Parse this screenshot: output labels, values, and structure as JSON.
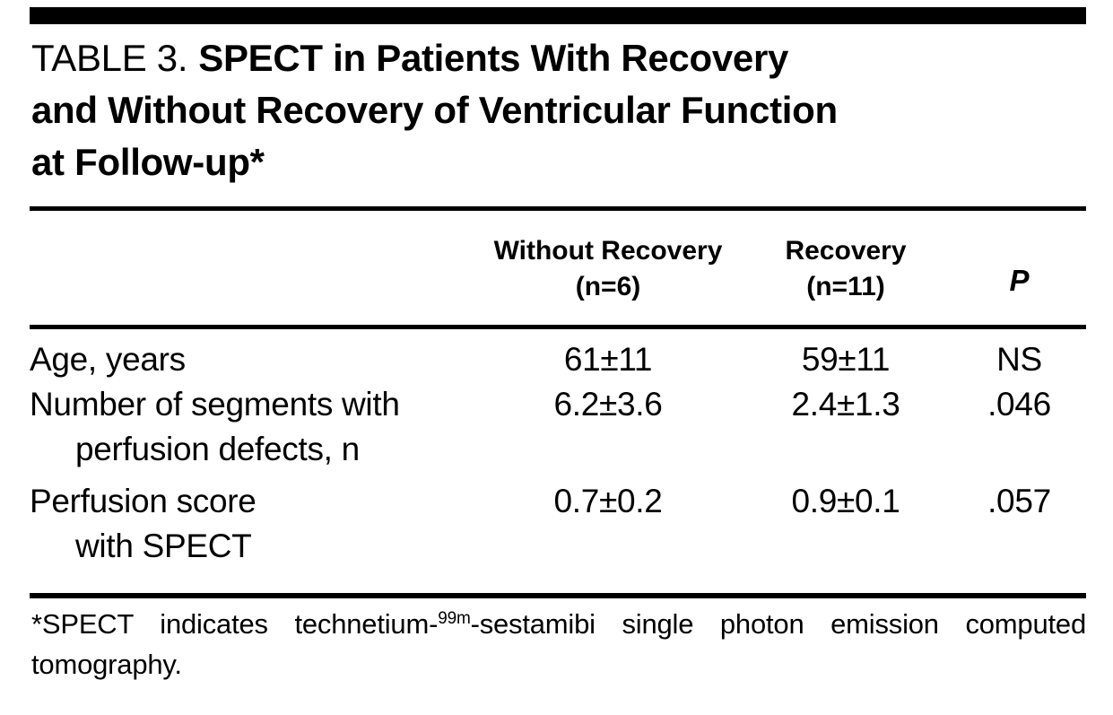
{
  "colors": {
    "ink": "#000000",
    "background": "#ffffff"
  },
  "title": {
    "prefix": "TABLE 3.",
    "line1_bold": "SPECT in Patients With Recovery",
    "line2": "and Without Recovery of Ventricular Function",
    "line3": "at Follow-up*"
  },
  "table": {
    "columns": {
      "without": {
        "line1": "Without Recovery",
        "line2": "(n=6)"
      },
      "recovery": {
        "line1": "Recovery",
        "line2": "(n=11)"
      },
      "p": "P"
    },
    "rows": [
      {
        "label": "Age, years",
        "without": "61±11",
        "recovery": "59±11",
        "p": "NS"
      },
      {
        "label": "Number of segments with",
        "label2": "perfusion defects, n",
        "without": "6.2±3.6",
        "recovery": "2.4±1.3",
        "p": ".046"
      },
      {
        "label": "Perfusion score",
        "label2": "with SPECT",
        "without": "0.7±0.2",
        "recovery": "0.9±0.1",
        "p": ".057"
      }
    ]
  },
  "footnote": {
    "pre": "*SPECT indicates technetium-",
    "sup": "99m",
    "post": "-sestamibi single photon emission computed",
    "line2": "tomography."
  }
}
